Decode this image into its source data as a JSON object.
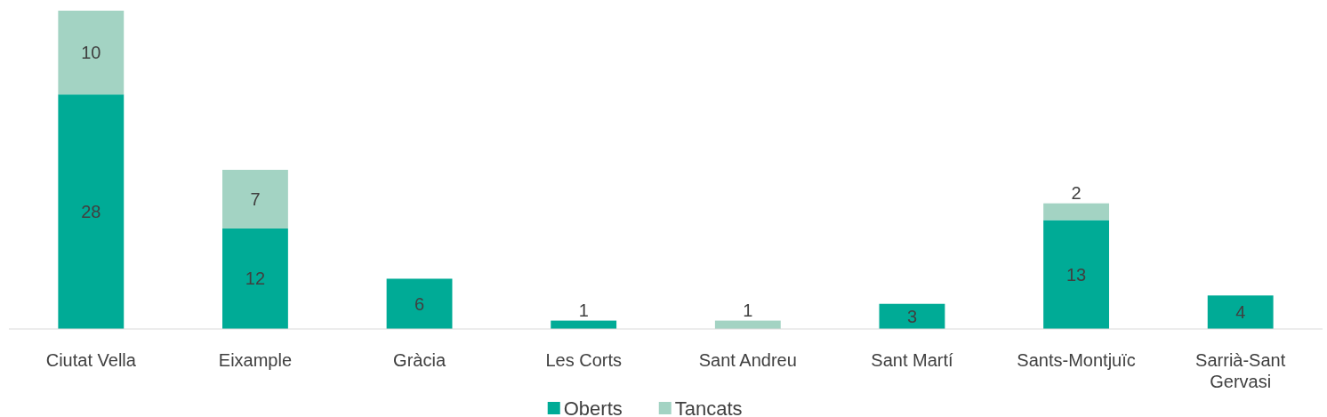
{
  "chart_data": {
    "type": "bar",
    "stacked": true,
    "categories": [
      "Ciutat Vella",
      "Eixample",
      "Gràcia",
      "Les Corts",
      "Sant Andreu",
      "Sant Martí",
      "Sants-Montjuïc",
      "Sarrià-Sant Gervasi"
    ],
    "series": [
      {
        "name": "Oberts",
        "color": "#00ab96",
        "values": [
          28,
          12,
          6,
          1,
          null,
          3,
          13,
          4
        ]
      },
      {
        "name": "Tancats",
        "color": "#a3d3c3",
        "values": [
          10,
          7,
          null,
          null,
          1,
          null,
          2,
          null
        ]
      }
    ],
    "data_labels": true,
    "legend": "bottom"
  }
}
